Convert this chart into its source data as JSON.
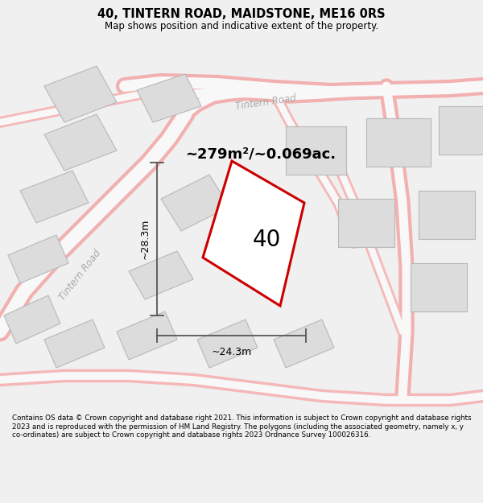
{
  "title_line1": "40, TINTERN ROAD, MAIDSTONE, ME16 0RS",
  "title_line2": "Map shows position and indicative extent of the property.",
  "area_text": "~279m²/~0.069ac.",
  "number_label": "40",
  "width_label": "~24.3m",
  "height_label": "~28.3m",
  "road_label": "Tintern Road",
  "road_label2": "Tintern Road",
  "footer_text": "Contains OS data © Crown copyright and database right 2021. This information is subject to Crown copyright and database rights 2023 and is reproduced with the permission of HM Land Registry. The polygons (including the associated geometry, namely x, y co-ordinates) are subject to Crown copyright and database rights 2023 Ordnance Survey 100026316.",
  "bg_color": "#f0f0f0",
  "map_bg": "#f8f8f8",
  "title_bg": "#ffffff",
  "footer_bg": "#ffffff",
  "plot_color": "#cc0000",
  "building_color": "#dcdcdc",
  "building_edge": "#b8b8b8",
  "road_stroke": "#f5b8b8",
  "road_center": "#f8f8f8"
}
